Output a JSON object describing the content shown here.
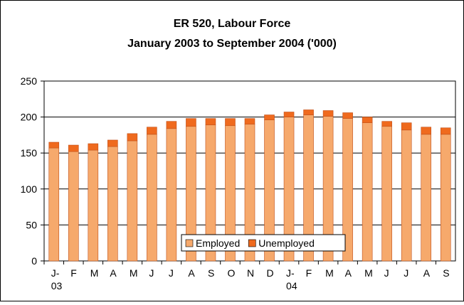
{
  "chart_data": {
    "type": "stacked_bar",
    "title": "ER 520, Labour Force",
    "subtitle": "January 2003 to September 2004 ('000)",
    "categories": [
      "J-\n03",
      "F",
      "M",
      "A",
      "M",
      "J",
      "J",
      "A",
      "S",
      "O",
      "N",
      "D",
      "J-\n04",
      "F",
      "M",
      "A",
      "M",
      "J",
      "J",
      "A",
      "S"
    ],
    "series": [
      {
        "name": "Employed",
        "color": "#f6a96c",
        "values": [
          157,
          152,
          154,
          159,
          167,
          176,
          184,
          187,
          189,
          188,
          190,
          196,
          200,
          203,
          201,
          198,
          192,
          187,
          182,
          176,
          176
        ]
      },
      {
        "name": "Unemployed",
        "color": "#ef6a1e",
        "values": [
          8,
          9,
          9,
          9,
          10,
          10,
          10,
          11,
          9,
          10,
          8,
          7,
          7,
          7,
          8,
          8,
          8,
          7,
          10,
          10,
          9
        ]
      }
    ],
    "ylim": [
      0,
      250
    ],
    "yticks": [
      0,
      50,
      100,
      150,
      200,
      250
    ],
    "grid": true,
    "legend": "bottom"
  }
}
